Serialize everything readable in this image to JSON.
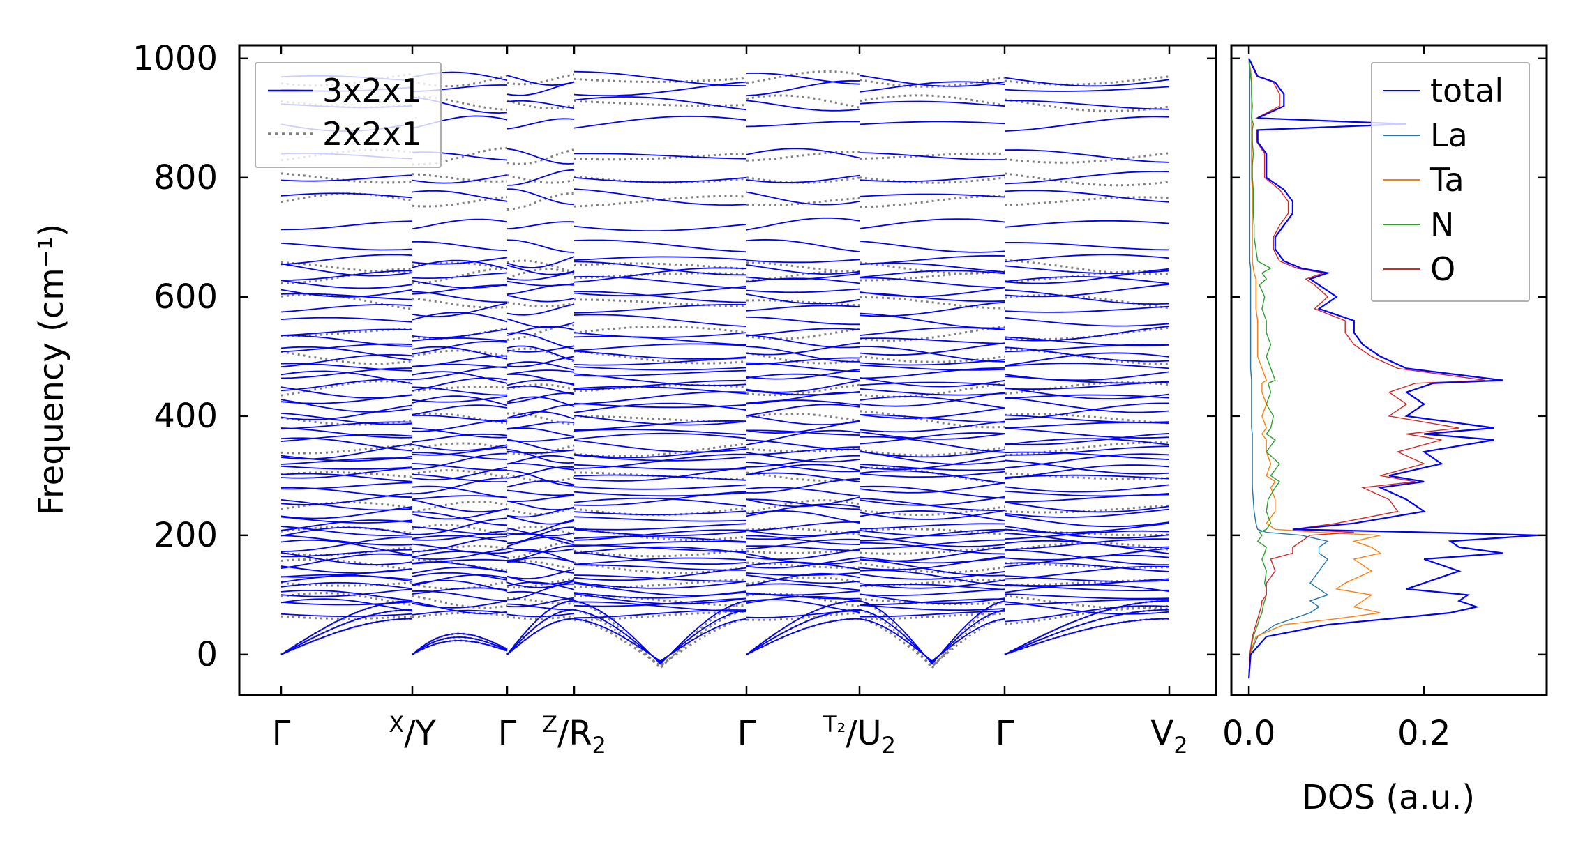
{
  "chart_data": [
    {
      "type": "line",
      "subtype": "phonon-dispersion",
      "title": "",
      "ylabel": "Frequency (cm⁻¹)",
      "xlabel": "",
      "ylim": [
        -68,
        1022
      ],
      "yticks": [
        0,
        200,
        400,
        600,
        800,
        1000
      ],
      "grid": false,
      "legend": {
        "position": "top-left",
        "entries": [
          "3x2x1",
          "2x2x1"
        ]
      },
      "path_labels": [
        {
          "kind": "plain",
          "text": "Γ"
        },
        {
          "kind": "break",
          "top": "X",
          "bottom": "Y",
          "sub": ""
        },
        {
          "kind": "plain",
          "text": "Γ"
        },
        {
          "kind": "break",
          "top": "Z",
          "bottom": "R",
          "sub": "2"
        },
        {
          "kind": "plain",
          "text": "Γ"
        },
        {
          "kind": "break",
          "top": "T₂",
          "bottom": "U",
          "sub": "2"
        },
        {
          "kind": "plain",
          "text": "Γ"
        },
        {
          "kind": "sub",
          "text": "V",
          "sub": "2"
        }
      ],
      "segments": [
        "Γ-X",
        "Y-Γ",
        "Γ-Z",
        "R₂-Γ",
        "Γ-T₂",
        "U₂-Γ",
        "Γ-V₂"
      ],
      "series": [
        {
          "name": "3x2x1",
          "style": "solid",
          "color": "#0000ff",
          "flat_band_frequencies": [
            68,
            80,
            88,
            98,
            105,
            112,
            122,
            128,
            137,
            146,
            155,
            163,
            170,
            178,
            185,
            192,
            200,
            208,
            215,
            228,
            240,
            252,
            262,
            272,
            283,
            296,
            305,
            315,
            324,
            333,
            342,
            352,
            362,
            372,
            384,
            396,
            408,
            420,
            430,
            442,
            452,
            462,
            472,
            482,
            492,
            504,
            514,
            526,
            540,
            560,
            580,
            600,
            612,
            624,
            636,
            648,
            662,
            685,
            720,
            768,
            800,
            836,
            890,
            922,
            950,
            966
          ],
          "acoustic_modes": [
            {
              "gamma": 0,
              "boundary": 68
            },
            {
              "gamma": 0,
              "boundary": 82
            },
            {
              "gamma": 0,
              "boundary": 96
            }
          ],
          "dip_min": -18
        },
        {
          "name": "2x2x1",
          "style": "dotted",
          "color": "#808080",
          "flat_band_frequencies": [
            64,
            90,
            120,
            150,
            175,
            205,
            245,
            300,
            345,
            395,
            445,
            500,
            540,
            590,
            635,
            650,
            760,
            800,
            836,
            925,
            966
          ],
          "dip_min": -30
        }
      ]
    },
    {
      "type": "line",
      "subtype": "density-of-states",
      "title": "",
      "xlabel": "DOS (a.u.)",
      "ylabel": "",
      "xlim": [
        -0.02,
        0.34
      ],
      "xticks": [
        0.0,
        0.2
      ],
      "ylim": [
        -68,
        1022
      ],
      "grid": false,
      "legend": {
        "position": "top-right",
        "entries": [
          "total",
          "La",
          "Ta",
          "N",
          "O"
        ]
      },
      "frequency_grid": [
        -40,
        0,
        30,
        50,
        60,
        70,
        80,
        90,
        100,
        110,
        120,
        140,
        160,
        170,
        180,
        190,
        200,
        205,
        210,
        220,
        240,
        260,
        280,
        290,
        300,
        320,
        340,
        360,
        370,
        380,
        400,
        420,
        440,
        455,
        460,
        480,
        500,
        520,
        540,
        560,
        580,
        600,
        620,
        630,
        640,
        648,
        660,
        680,
        700,
        720,
        740,
        760,
        780,
        800,
        820,
        840,
        860,
        880,
        890,
        900,
        920,
        940,
        960,
        970,
        1000
      ],
      "series": [
        {
          "name": "total",
          "color": "#0000ff",
          "values": [
            0,
            0.002,
            0.02,
            0.09,
            0.16,
            0.23,
            0.26,
            0.24,
            0.25,
            0.18,
            0.2,
            0.24,
            0.2,
            0.29,
            0.24,
            0.23,
            0.33,
            0.2,
            0.05,
            0.12,
            0.2,
            0.18,
            0.15,
            0.2,
            0.16,
            0.22,
            0.2,
            0.28,
            0.2,
            0.28,
            0.18,
            0.2,
            0.18,
            0.21,
            0.29,
            0.18,
            0.15,
            0.13,
            0.12,
            0.12,
            0.08,
            0.1,
            0.08,
            0.07,
            0.09,
            0.06,
            0.04,
            0.03,
            0.03,
            0.04,
            0.05,
            0.05,
            0.04,
            0.02,
            0.02,
            0.02,
            0.01,
            0.01,
            0.18,
            0.01,
            0.04,
            0.04,
            0.03,
            0.01,
            0
          ]
        },
        {
          "name": "La",
          "color": "#1f77b4",
          "values": [
            0,
            0.001,
            0.01,
            0.03,
            0.05,
            0.07,
            0.08,
            0.07,
            0.09,
            0.08,
            0.07,
            0.08,
            0.09,
            0.08,
            0.08,
            0.09,
            0.06,
            0.02,
            0.01,
            0.008,
            0.006,
            0.005,
            0.004,
            0.004,
            0.004,
            0.004,
            0.004,
            0.004,
            0.004,
            0.003,
            0.003,
            0.003,
            0.003,
            0.003,
            0.003,
            0.002,
            0.002,
            0.002,
            0.002,
            0.002,
            0.002,
            0.002,
            0.002,
            0.002,
            0.002,
            0.002,
            0.001,
            0.001,
            0.001,
            0.001,
            0.001,
            0.001,
            0.001,
            0.001,
            0.001,
            0.001,
            0.001,
            0.001,
            0.001,
            0.001,
            0.001,
            0.001,
            0.001,
            0.001,
            0
          ]
        },
        {
          "name": "Ta",
          "color": "#ff7f0e",
          "values": [
            0,
            0.001,
            0.008,
            0.04,
            0.1,
            0.15,
            0.12,
            0.13,
            0.14,
            0.1,
            0.11,
            0.14,
            0.12,
            0.15,
            0.14,
            0.12,
            0.15,
            0.08,
            0.03,
            0.02,
            0.03,
            0.03,
            0.025,
            0.03,
            0.02,
            0.025,
            0.02,
            0.02,
            0.015,
            0.02,
            0.015,
            0.02,
            0.015,
            0.015,
            0.02,
            0.015,
            0.01,
            0.01,
            0.01,
            0.01,
            0.008,
            0.008,
            0.008,
            0.008,
            0.006,
            0.005,
            0.004,
            0.004,
            0.004,
            0.004,
            0.004,
            0.004,
            0.004,
            0.003,
            0.003,
            0.003,
            0.003,
            0.003,
            0.003,
            0.003,
            0.003,
            0.003,
            0.003,
            0.003,
            0
          ]
        },
        {
          "name": "N",
          "color": "#2ca02c",
          "values": [
            0,
            0.001,
            0.005,
            0.01,
            0.012,
            0.015,
            0.016,
            0.018,
            0.02,
            0.02,
            0.018,
            0.02,
            0.015,
            0.018,
            0.02,
            0.01,
            0.015,
            0.012,
            0.02,
            0.025,
            0.02,
            0.022,
            0.03,
            0.035,
            0.025,
            0.035,
            0.02,
            0.03,
            0.02,
            0.025,
            0.028,
            0.02,
            0.025,
            0.022,
            0.03,
            0.025,
            0.02,
            0.025,
            0.02,
            0.02,
            0.015,
            0.018,
            0.012,
            0.02,
            0.015,
            0.025,
            0.01,
            0.008,
            0.006,
            0.006,
            0.005,
            0.005,
            0.005,
            0.004,
            0.004,
            0.005,
            0.004,
            0.004,
            0.005,
            0.003,
            0.004,
            0.003,
            0.003,
            0.002,
            0
          ]
        },
        {
          "name": "O",
          "color": "#d62728",
          "values": [
            0,
            0.001,
            0.004,
            0.008,
            0.01,
            0.012,
            0.014,
            0.015,
            0.02,
            0.02,
            0.02,
            0.03,
            0.025,
            0.05,
            0.05,
            0.06,
            0.07,
            0.12,
            0.05,
            0.1,
            0.17,
            0.16,
            0.13,
            0.19,
            0.15,
            0.2,
            0.17,
            0.22,
            0.18,
            0.24,
            0.16,
            0.18,
            0.16,
            0.19,
            0.27,
            0.17,
            0.14,
            0.12,
            0.11,
            0.11,
            0.075,
            0.09,
            0.075,
            0.065,
            0.085,
            0.055,
            0.035,
            0.028,
            0.028,
            0.035,
            0.045,
            0.045,
            0.035,
            0.018,
            0.018,
            0.018,
            0.009,
            0.009,
            0.17,
            0.009,
            0.035,
            0.035,
            0.028,
            0.009,
            0
          ]
        }
      ]
    }
  ]
}
